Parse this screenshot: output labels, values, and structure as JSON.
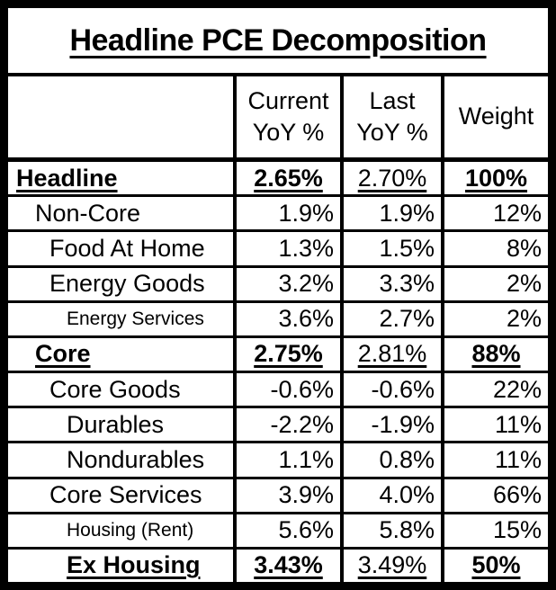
{
  "page": {
    "background_color": "#ffffff",
    "border_color": "#000000",
    "text_color": "#000000"
  },
  "chart_data": {
    "type": "table",
    "title": "Headline PCE Decomposition",
    "columns": [
      "",
      "Current YoY %",
      "Last YoY %",
      "Weight"
    ],
    "header": {
      "current": {
        "line1": "Current",
        "line2": "YoY %"
      },
      "last": {
        "line1": "Last",
        "line2": "YoY %"
      },
      "weight": "Weight"
    },
    "rows": [
      {
        "label": "Headline",
        "current": "2.65%",
        "last": "2.70%",
        "weight": "100%",
        "indent": 0,
        "emphasis": true,
        "shrink": false
      },
      {
        "label": "Non-Core",
        "current": "1.9%",
        "last": "1.9%",
        "weight": "12%",
        "indent": 1,
        "emphasis": false,
        "shrink": false
      },
      {
        "label": "Food At Home",
        "current": "1.3%",
        "last": "1.5%",
        "weight": "8%",
        "indent": 2,
        "emphasis": false,
        "shrink": false
      },
      {
        "label": "Energy Goods",
        "current": "3.2%",
        "last": "3.3%",
        "weight": "2%",
        "indent": 2,
        "emphasis": false,
        "shrink": false
      },
      {
        "label": "Energy Services",
        "current": "3.6%",
        "last": "2.7%",
        "weight": "2%",
        "indent": 3,
        "emphasis": false,
        "shrink": true
      },
      {
        "label": "Core",
        "current": "2.75%",
        "last": "2.81%",
        "weight": "88%",
        "indent": 1,
        "emphasis": true,
        "shrink": false
      },
      {
        "label": "Core Goods",
        "current": "-0.6%",
        "last": "-0.6%",
        "weight": "22%",
        "indent": 2,
        "emphasis": false,
        "shrink": false
      },
      {
        "label": "Durables",
        "current": "-2.2%",
        "last": "-1.9%",
        "weight": "11%",
        "indent": 3,
        "emphasis": false,
        "shrink": false
      },
      {
        "label": "Nondurables",
        "current": "1.1%",
        "last": "0.8%",
        "weight": "11%",
        "indent": 3,
        "emphasis": false,
        "shrink": false
      },
      {
        "label": "Core Services",
        "current": "3.9%",
        "last": "4.0%",
        "weight": "66%",
        "indent": 2,
        "emphasis": false,
        "shrink": false
      },
      {
        "label": "Housing (Rent)",
        "current": "5.6%",
        "last": "5.8%",
        "weight": "15%",
        "indent": 3,
        "emphasis": false,
        "shrink": true
      },
      {
        "label": "Ex Housing",
        "current": "3.43%",
        "last": "3.49%",
        "weight": "50%",
        "indent": 3,
        "emphasis": true,
        "shrink": false
      }
    ]
  }
}
